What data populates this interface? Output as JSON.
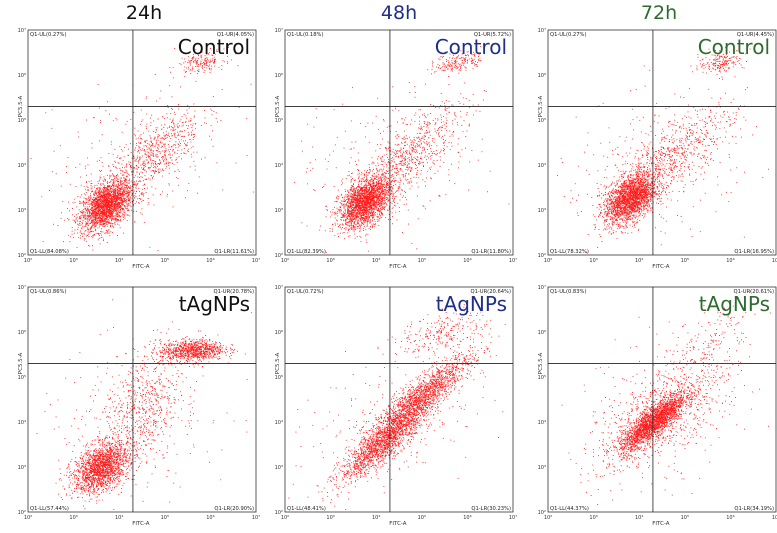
{
  "timepoints": [
    {
      "label": "24h",
      "color": "#111111"
    },
    {
      "label": "48h",
      "color": "#1f2f8a"
    },
    {
      "label": "72h",
      "color": "#2d6b2f"
    }
  ],
  "chart_data": [
    {
      "type": "scatter",
      "title": "Control",
      "timepoint": "24h",
      "xlabel": "FITC-A",
      "ylabel": "PC5.5-A",
      "xlim": [
        100,
        10000000
      ],
      "ylim": [
        100,
        10000000
      ],
      "xticks": [
        "10²",
        "10³",
        "10⁴",
        "10⁵",
        "10⁶",
        "10⁷"
      ],
      "yticks": [
        "10²",
        "10³",
        "10⁴",
        "10⁵",
        "10⁶",
        "10⁷"
      ],
      "quadrants": {
        "UL": "Q1-UL(0.27%)",
        "UR": "Q1-UR(4.05%)",
        "LL": "Q1-LL(84.08%)",
        "LR": "Q1-LR(11.61%)"
      },
      "gate": {
        "x": 20000,
        "y": 200000
      }
    },
    {
      "type": "scatter",
      "title": "Control",
      "timepoint": "48h",
      "xlabel": "FITC-A",
      "ylabel": "PC5.5-A",
      "xlim": [
        100,
        10000000
      ],
      "ylim": [
        100,
        10000000
      ],
      "xticks": [
        "10²",
        "10³",
        "10⁴",
        "10⁵",
        "10⁶",
        "10⁷"
      ],
      "yticks": [
        "10²",
        "10³",
        "10⁴",
        "10⁵",
        "10⁶",
        "10⁷"
      ],
      "quadrants": {
        "UL": "Q1-UL(0.18%)",
        "UR": "Q1-UR(5.72%)",
        "LL": "Q1-LL(82.39%)",
        "LR": "Q1-LR(11.80%)"
      },
      "gate": {
        "x": 20000,
        "y": 200000
      }
    },
    {
      "type": "scatter",
      "title": "Control",
      "timepoint": "72h",
      "xlabel": "FITC-A",
      "ylabel": "PC5.5-A",
      "xlim": [
        100,
        10000000
      ],
      "ylim": [
        100,
        10000000
      ],
      "xticks": [
        "10²",
        "10³",
        "10⁴",
        "10⁵",
        "10⁶",
        "10⁷"
      ],
      "yticks": [
        "10²",
        "10³",
        "10⁴",
        "10⁵",
        "10⁶",
        "10⁷"
      ],
      "quadrants": {
        "UL": "Q1-UL(0.27%)",
        "UR": "Q1-UR(4.45%)",
        "LL": "Q1-LL(78.32%)",
        "LR": "Q1-LR(16.95%)"
      },
      "gate": {
        "x": 20000,
        "y": 200000
      }
    },
    {
      "type": "scatter",
      "title": "tAgNPs",
      "timepoint": "24h",
      "xlabel": "FITC-A",
      "ylabel": "PC5.5-A",
      "xlim": [
        100,
        10000000
      ],
      "ylim": [
        100,
        10000000
      ],
      "xticks": [
        "10²",
        "10³",
        "10⁴",
        "10⁵",
        "10⁶",
        "10⁷"
      ],
      "yticks": [
        "10²",
        "10³",
        "10⁴",
        "10⁵",
        "10⁶",
        "10⁷"
      ],
      "quadrants": {
        "UL": "Q1-UL(0.86%)",
        "UR": "Q1-UR(20.78%)",
        "LL": "Q1-LL(57.44%)",
        "LR": "Q1-LR(20.90%)"
      },
      "gate": {
        "x": 20000,
        "y": 200000
      }
    },
    {
      "type": "scatter",
      "title": "tAgNPs",
      "timepoint": "48h",
      "xlabel": "FITC-A",
      "ylabel": "PC5.5-A",
      "xlim": [
        100,
        10000000
      ],
      "ylim": [
        100,
        10000000
      ],
      "xticks": [
        "10²",
        "10³",
        "10⁴",
        "10⁵",
        "10⁶",
        "10⁷"
      ],
      "yticks": [
        "10²",
        "10³",
        "10⁴",
        "10⁵",
        "10⁶",
        "10⁷"
      ],
      "quadrants": {
        "UL": "Q1-UL(0.72%)",
        "UR": "Q1-UR(20.64%)",
        "LL": "Q1-LL(48.41%)",
        "LR": "Q1-LR(30.23%)"
      },
      "gate": {
        "x": 20000,
        "y": 200000
      }
    },
    {
      "type": "scatter",
      "title": "tAgNPs",
      "timepoint": "72h",
      "xlabel": "FITC-A",
      "ylabel": "PC5.5-A",
      "xlim": [
        100,
        10000000
      ],
      "ylim": [
        100,
        10000000
      ],
      "xticks": [
        "10²",
        "10³",
        "10⁴",
        "10⁵",
        "10⁶",
        "10⁷"
      ],
      "yticks": [
        "10²",
        "10³",
        "10⁴",
        "10⁵",
        "10⁶",
        "10⁷"
      ],
      "quadrants": {
        "UL": "Q1-UL(0.83%)",
        "UR": "Q1-UR(20.61%)",
        "LL": "Q1-LL(44.37%)",
        "LR": "Q1-LR(34.19%)"
      },
      "gate": {
        "x": 20000,
        "y": 200000
      }
    }
  ]
}
